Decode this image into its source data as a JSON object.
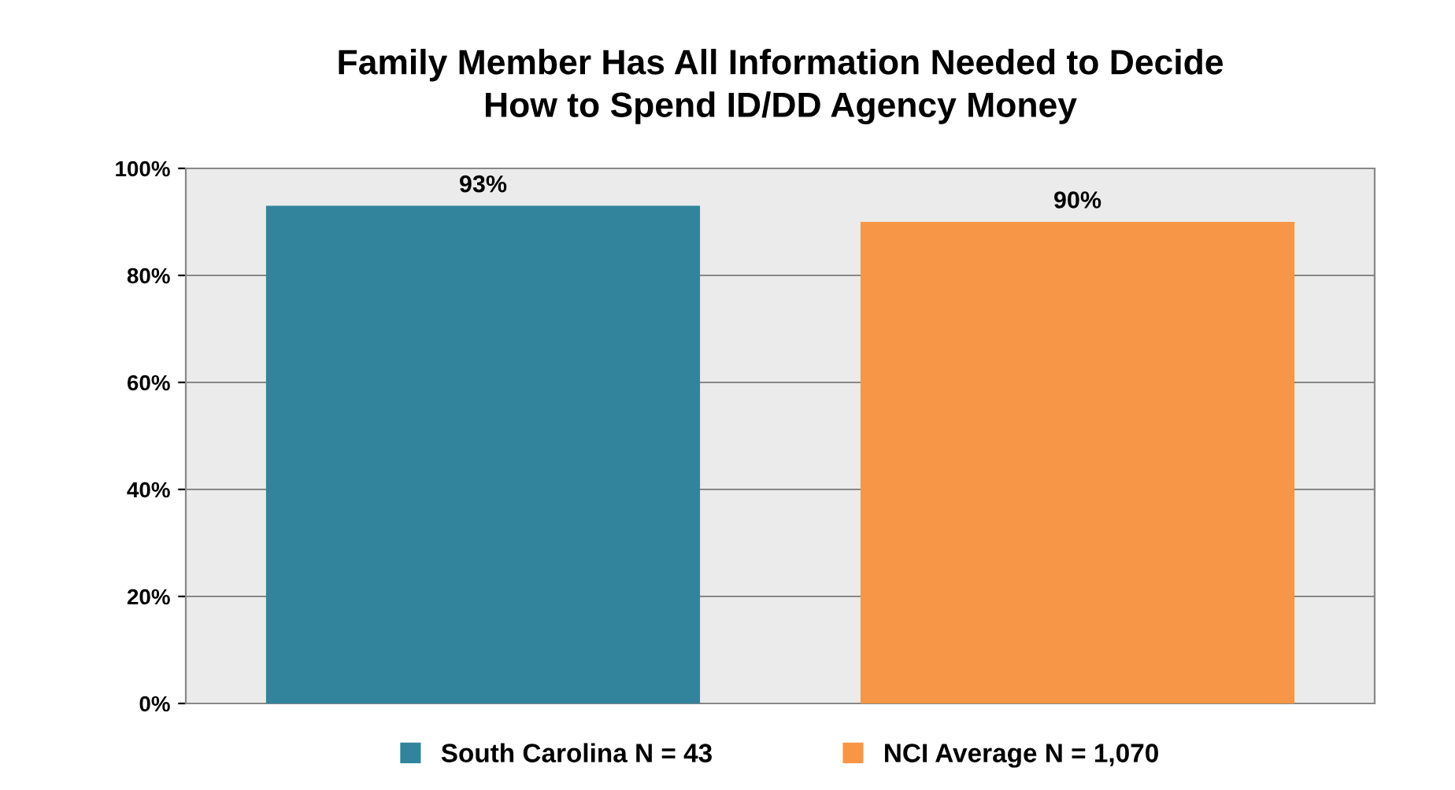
{
  "chart_data": {
    "type": "bar",
    "title": "Family Member Has All Information Needed to Decide\nHow to Spend ID/DD Agency Money",
    "categories": [
      null,
      null
    ],
    "series": [
      {
        "name": "South Carolina N = 43",
        "color": "#31849b",
        "values": [
          93,
          null
        ],
        "value_labels": [
          "93%",
          null
        ]
      },
      {
        "name": "NCI Average N = 1,070",
        "color": "#f79646",
        "values": [
          null,
          90
        ],
        "value_labels": [
          null,
          "90%"
        ]
      }
    ],
    "ylim": [
      0,
      100
    ],
    "yticks": [
      {
        "value": 0,
        "label": "0%"
      },
      {
        "value": 20,
        "label": "20%"
      },
      {
        "value": 40,
        "label": "40%"
      },
      {
        "value": 60,
        "label": "60%"
      },
      {
        "value": 80,
        "label": "80%"
      },
      {
        "value": 100,
        "label": "100%"
      }
    ],
    "grid": "y",
    "legend": "bottom"
  }
}
